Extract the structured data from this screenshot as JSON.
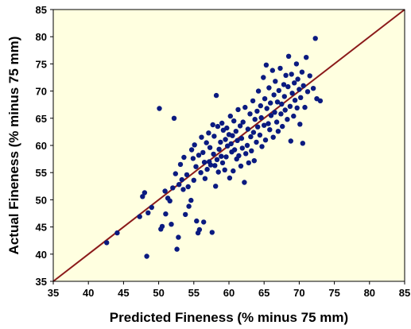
{
  "chart_data": {
    "type": "scatter",
    "title": "",
    "xlabel": "Predicted Fineness (% minus 75 mm)",
    "ylabel": "Actual Fineness (% minus 75 mm)",
    "xlim": [
      35,
      85
    ],
    "ylim": [
      35,
      85
    ],
    "x_ticks": [
      "35",
      "40",
      "45",
      "50",
      "55",
      "60",
      "65",
      "70",
      "75",
      "80",
      "85"
    ],
    "y_ticks": [
      "35",
      "40",
      "45",
      "50",
      "55",
      "60",
      "65",
      "70",
      "75",
      "80",
      "85"
    ],
    "grid": false,
    "legend": "none",
    "reference_line": {
      "label": "",
      "from": [
        35,
        35
      ],
      "to": [
        85,
        85
      ]
    },
    "series": [
      {
        "points": [
          [
            42.6,
            42.1
          ],
          [
            44.1,
            43.9
          ],
          [
            47.3,
            46.9
          ],
          [
            47.7,
            50.6
          ],
          [
            48.0,
            51.3
          ],
          [
            48.3,
            39.6
          ],
          [
            48.5,
            47.6
          ],
          [
            49.0,
            48.6
          ],
          [
            50.1,
            66.8
          ],
          [
            50.3,
            44.6
          ],
          [
            50.5,
            45.1
          ],
          [
            50.9,
            51.6
          ],
          [
            51.0,
            47.4
          ],
          [
            51.3,
            50.3
          ],
          [
            51.6,
            49.8
          ],
          [
            51.8,
            45.5
          ],
          [
            52.0,
            52.2
          ],
          [
            52.2,
            65.0
          ],
          [
            52.4,
            54.8
          ],
          [
            52.6,
            40.9
          ],
          [
            52.8,
            43.1
          ],
          [
            52.9,
            52.8
          ],
          [
            53.1,
            56.5
          ],
          [
            53.3,
            53.7
          ],
          [
            53.5,
            51.9
          ],
          [
            53.6,
            57.8
          ],
          [
            53.8,
            47.3
          ],
          [
            54.0,
            54.6
          ],
          [
            54.2,
            52.4
          ],
          [
            54.3,
            48.8
          ],
          [
            54.6,
            49.9
          ],
          [
            54.7,
            59.2
          ],
          [
            54.9,
            57.6
          ],
          [
            55.0,
            53.6
          ],
          [
            55.1,
            60.1
          ],
          [
            55.3,
            56.1
          ],
          [
            55.4,
            46.1
          ],
          [
            55.6,
            43.9
          ],
          [
            55.7,
            58.2
          ],
          [
            55.8,
            44.5
          ],
          [
            56.0,
            55.0
          ],
          [
            56.1,
            61.5
          ],
          [
            56.3,
            58.7
          ],
          [
            56.4,
            45.9
          ],
          [
            56.5,
            56.9
          ],
          [
            56.6,
            53.9
          ],
          [
            56.8,
            60.5
          ],
          [
            56.9,
            55.6
          ],
          [
            57.1,
            62.3
          ],
          [
            57.2,
            57.0
          ],
          [
            57.3,
            59.6
          ],
          [
            57.4,
            56.4
          ],
          [
            57.6,
            44.0
          ],
          [
            57.7,
            63.8
          ],
          [
            57.8,
            58.4
          ],
          [
            57.9,
            61.7
          ],
          [
            58.0,
            56.3
          ],
          [
            58.1,
            52.5
          ],
          [
            58.2,
            69.2
          ],
          [
            58.3,
            57.4
          ],
          [
            58.4,
            63.5
          ],
          [
            58.5,
            55.1
          ],
          [
            58.6,
            59.3
          ],
          [
            58.8,
            60.6
          ],
          [
            58.9,
            58.0
          ],
          [
            59.0,
            64.1
          ],
          [
            59.1,
            56.8
          ],
          [
            59.2,
            62.8
          ],
          [
            59.4,
            55.5
          ],
          [
            59.5,
            61.1
          ],
          [
            59.6,
            57.9
          ],
          [
            59.7,
            63.2
          ],
          [
            59.8,
            59.9
          ],
          [
            60.0,
            62.0
          ],
          [
            60.1,
            54.0
          ],
          [
            60.2,
            65.4
          ],
          [
            60.3,
            60.3
          ],
          [
            60.4,
            58.8
          ],
          [
            60.5,
            61.8
          ],
          [
            60.6,
            55.3
          ],
          [
            60.7,
            64.5
          ],
          [
            60.8,
            59.2
          ],
          [
            61.0,
            62.6
          ],
          [
            61.1,
            57.5
          ],
          [
            61.2,
            60.9
          ],
          [
            61.3,
            66.6
          ],
          [
            61.4,
            58.1
          ],
          [
            61.6,
            63.6
          ],
          [
            61.7,
            56.2
          ],
          [
            61.8,
            61.3
          ],
          [
            61.9,
            59.5
          ],
          [
            62.0,
            64.3
          ],
          [
            62.2,
            53.2
          ],
          [
            62.3,
            67.0
          ],
          [
            62.4,
            58.5
          ],
          [
            62.6,
            60.0
          ],
          [
            62.7,
            63.0
          ],
          [
            62.8,
            56.8
          ],
          [
            63.0,
            65.8
          ],
          [
            63.1,
            61.6
          ],
          [
            63.2,
            59.0
          ],
          [
            63.4,
            68.2
          ],
          [
            63.5,
            62.4
          ],
          [
            63.6,
            57.2
          ],
          [
            63.7,
            64.8
          ],
          [
            63.9,
            60.6
          ],
          [
            64.0,
            66.3
          ],
          [
            64.1,
            63.4
          ],
          [
            64.2,
            70.0
          ],
          [
            64.4,
            61.9
          ],
          [
            64.5,
            67.3
          ],
          [
            64.6,
            65.1
          ],
          [
            64.7,
            59.8
          ],
          [
            64.9,
            72.5
          ],
          [
            65.0,
            63.7
          ],
          [
            65.1,
            68.6
          ],
          [
            65.2,
            61.0
          ],
          [
            65.3,
            74.8
          ],
          [
            65.4,
            66.8
          ],
          [
            65.6,
            64.0
          ],
          [
            65.7,
            70.6
          ],
          [
            65.8,
            62.9
          ],
          [
            65.9,
            67.8
          ],
          [
            66.0,
            65.5
          ],
          [
            66.2,
            73.8
          ],
          [
            66.3,
            61.5
          ],
          [
            66.4,
            69.3
          ],
          [
            66.5,
            66.1
          ],
          [
            66.6,
            71.8
          ],
          [
            66.8,
            64.3
          ],
          [
            66.9,
            68.0
          ],
          [
            67.0,
            62.6
          ],
          [
            67.1,
            70.1
          ],
          [
            67.3,
            74.2
          ],
          [
            67.4,
            65.8
          ],
          [
            67.5,
            67.6
          ],
          [
            67.6,
            63.5
          ],
          [
            67.8,
            71.2
          ],
          [
            67.9,
            69.0
          ],
          [
            68.0,
            66.5
          ],
          [
            68.1,
            72.9
          ],
          [
            68.3,
            64.8
          ],
          [
            68.4,
            70.8
          ],
          [
            68.5,
            76.4
          ],
          [
            68.7,
            67.2
          ],
          [
            68.8,
            60.8
          ],
          [
            68.9,
            73.1
          ],
          [
            69.0,
            69.6
          ],
          [
            69.2,
            65.4
          ],
          [
            69.3,
            71.5
          ],
          [
            69.4,
            68.3
          ],
          [
            69.6,
            75.0
          ],
          [
            69.7,
            66.9
          ],
          [
            69.8,
            72.2
          ],
          [
            70.0,
            70.3
          ],
          [
            70.1,
            63.9
          ],
          [
            70.2,
            68.8
          ],
          [
            70.4,
            73.5
          ],
          [
            70.5,
            60.4
          ],
          [
            70.6,
            71.0
          ],
          [
            70.8,
            67.0
          ],
          [
            71.0,
            76.2
          ],
          [
            71.2,
            69.9
          ],
          [
            71.5,
            72.8
          ],
          [
            72.0,
            70.5
          ],
          [
            72.3,
            79.7
          ],
          [
            72.5,
            68.6
          ],
          [
            73.0,
            68.2
          ]
        ]
      }
    ],
    "colors": {
      "plot_background": "#ffffe0",
      "points": "#0a1a80",
      "reference_line": "#8b1a1a",
      "frame": "#000000"
    }
  }
}
